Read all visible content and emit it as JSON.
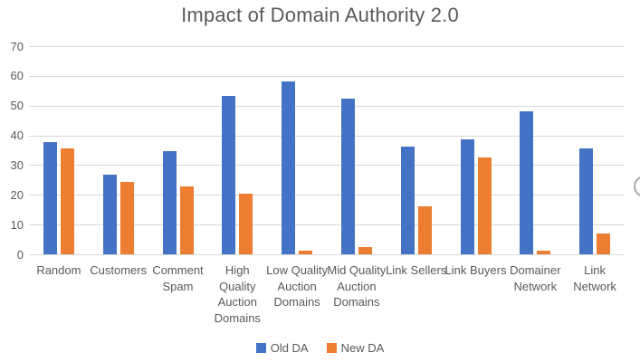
{
  "page": {
    "background": "#FFFFFF"
  },
  "colors": {
    "old_da": "#4472C4",
    "new_da": "#ED7D31",
    "gridline": "#D9D9D9",
    "axis_text": "#595959",
    "title_text": "#595959",
    "edge_button_border": "#A6A6A6"
  },
  "chart_data": {
    "type": "bar",
    "title": "Impact of Domain Authority 2.0",
    "categories": [
      "Random",
      "Customers",
      "Comment Spam",
      "High Quality Auction Domains",
      "Low Quality Auction Domains",
      "Mid Quality Auction Domains",
      "Link Sellers",
      "Link Buyers",
      "Domainer Network",
      "Link Network"
    ],
    "series": [
      {
        "name": "Old DA",
        "color": "#4472C4",
        "values": [
          37.7,
          26.7,
          34.6,
          53.3,
          58.2,
          52.2,
          36.2,
          38.7,
          48.0,
          35.6
        ]
      },
      {
        "name": "New DA",
        "color": "#ED7D31",
        "values": [
          35.5,
          24.5,
          22.8,
          20.5,
          1.3,
          2.3,
          16.0,
          32.6,
          1.3,
          7.1
        ]
      }
    ],
    "y_axis": {
      "min": 0,
      "max": 70,
      "step": 10,
      "ticks": [
        0,
        10,
        20,
        30,
        40,
        50,
        60,
        70
      ]
    },
    "grid": true,
    "legend_position": "bottom"
  }
}
